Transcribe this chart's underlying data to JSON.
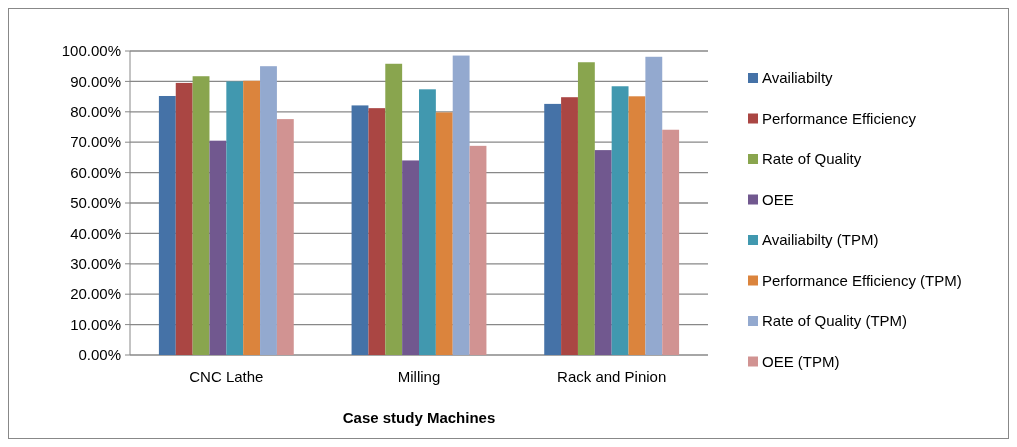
{
  "chart_data": {
    "type": "bar",
    "xlabel": "Case study Machines",
    "categories": [
      "CNC Lathe",
      "Milling",
      "Rack and Pinion"
    ],
    "series": [
      {
        "name": "Availiabilty",
        "color": "#4572a7",
        "values": [
          85.2,
          82.1,
          82.6
        ]
      },
      {
        "name": "Performance Efficiency",
        "color": "#aa4643",
        "values": [
          89.5,
          81.2,
          84.8
        ]
      },
      {
        "name": "Rate of Quality",
        "color": "#89a54e",
        "values": [
          91.7,
          95.8,
          96.3
        ]
      },
      {
        "name": "OEE",
        "color": "#71588f",
        "values": [
          70.5,
          64.0,
          67.4
        ]
      },
      {
        "name": "Availiabilty (TPM)",
        "color": "#4198af",
        "values": [
          90.0,
          87.4,
          88.4
        ]
      },
      {
        "name": "Performance Efficiency (TPM)",
        "color": "#db843d",
        "values": [
          90.2,
          79.8,
          85.1
        ]
      },
      {
        "name": "Rate of Quality (TPM)",
        "color": "#93a9cf",
        "values": [
          95.0,
          98.5,
          98.1
        ]
      },
      {
        "name": "OEE (TPM)",
        "color": "#d19392",
        "values": [
          77.6,
          68.8,
          74.1
        ]
      }
    ],
    "ylim": [
      0,
      100
    ],
    "yticks": [
      {
        "value": 0,
        "label": "0.00%"
      },
      {
        "value": 10,
        "label": "10.00%"
      },
      {
        "value": 20,
        "label": "20.00%"
      },
      {
        "value": 30,
        "label": "30.00%"
      },
      {
        "value": 40,
        "label": "40.00%"
      },
      {
        "value": 50,
        "label": "50.00%"
      },
      {
        "value": 60,
        "label": "60.00%"
      },
      {
        "value": 70,
        "label": "70.00%"
      },
      {
        "value": 80,
        "label": "80.00%"
      },
      {
        "value": 90,
        "label": "90.00%"
      },
      {
        "value": 100,
        "label": "100.00%"
      }
    ],
    "grid": "y",
    "legend": "right"
  }
}
